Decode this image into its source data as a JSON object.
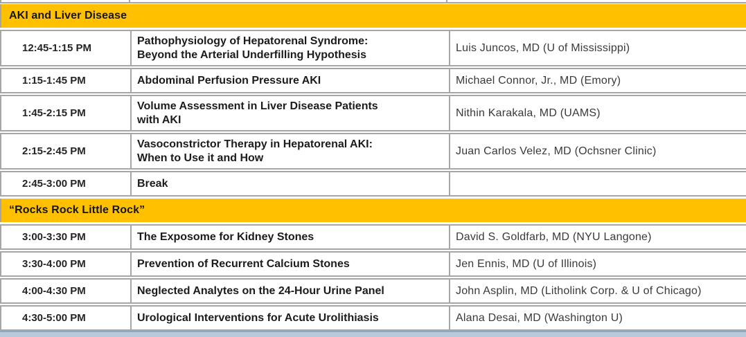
{
  "theme": {
    "band_color": "#FFC000",
    "border_color": "#A6A6A6",
    "bar_fill": "#b7c9da",
    "bar_edge": "#8ea8c0"
  },
  "schedule": {
    "sections": [
      {
        "header": "AKI and Liver Disease",
        "rows": [
          {
            "time": "12:45-1:15 PM",
            "title": "Pathophysiology of Hepatorenal Syndrome:\nBeyond the Arterial Underfilling Hypothesis",
            "speaker": "Luis Juncos, MD (U of Mississippi)"
          },
          {
            "time": "1:15-1:45 PM",
            "title": "Abdominal Perfusion Pressure AKI",
            "speaker": "Michael Connor, Jr., MD (Emory)"
          },
          {
            "time": "1:45-2:15 PM",
            "title": "Volume Assessment in Liver Disease Patients\nwith AKI",
            "speaker": "Nithin Karakala, MD (UAMS)"
          },
          {
            "time": "2:15-2:45 PM",
            "title": "Vasoconstrictor Therapy in Hepatorenal AKI:\nWhen to Use it and How",
            "speaker": "Juan Carlos Velez, MD (Ochsner Clinic)"
          },
          {
            "time": "2:45-3:00 PM",
            "title": "Break",
            "speaker": ""
          }
        ]
      },
      {
        "header": "“Rocks Rock Little Rock”",
        "rows": [
          {
            "time": "3:00-3:30 PM",
            "title": "The Exposome for Kidney Stones",
            "speaker": "David S. Goldfarb, MD (NYU Langone)"
          },
          {
            "time": "3:30-4:00 PM",
            "title": "Prevention of Recurrent Calcium Stones",
            "speaker": "Jen Ennis, MD (U of Illinois)"
          },
          {
            "time": "4:00-4:30 PM",
            "title": "Neglected Analytes on the 24-Hour Urine Panel",
            "speaker": "John Asplin, MD (Litholink Corp. & U of Chicago)"
          },
          {
            "time": "4:30-5:00 PM",
            "title": "Urological Interventions for Acute Urolithiasis",
            "speaker": "Alana Desai, MD (Washington U)"
          }
        ]
      }
    ]
  }
}
